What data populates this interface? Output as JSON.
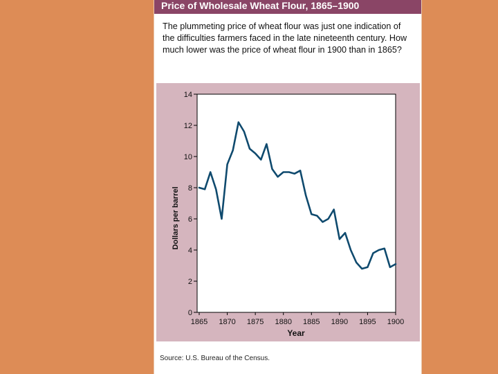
{
  "title": "Price of Wholesale Wheat Flour, 1865–1900",
  "intro": "The plummeting price of wheat flour was just one indication of the difficulties farmers faced in the late nineteenth century. How much lower was the price of wheat flour in 1900 than in 1865?",
  "source": "Source: U.S. Bureau of the Census.",
  "colors": {
    "line": "#0f4a6e",
    "title_bar": "#8a4566",
    "chart_bg": "#d5b5be",
    "background": "#dd8c56"
  },
  "chart_data": {
    "type": "line",
    "title": "Price of Wholesale Wheat Flour, 1865–1900",
    "xlabel": "Year",
    "ylabel": "Dollars per barrel",
    "xlim": [
      1865,
      1900
    ],
    "ylim": [
      0,
      14
    ],
    "x_ticks": [
      1865,
      1870,
      1875,
      1880,
      1885,
      1890,
      1895,
      1900
    ],
    "y_ticks": [
      0,
      2,
      4,
      6,
      8,
      10,
      12,
      14
    ],
    "grid": false,
    "series": [
      {
        "x": [
          1865,
          1866,
          1867,
          1868,
          1869,
          1870,
          1871,
          1872,
          1873,
          1874,
          1875,
          1876,
          1877,
          1878,
          1879,
          1880,
          1881,
          1882,
          1883,
          1884,
          1885,
          1886,
          1887,
          1888,
          1889,
          1890,
          1891,
          1892,
          1893,
          1894,
          1895,
          1896,
          1897,
          1898,
          1899,
          1900
        ],
        "values": [
          8.0,
          7.9,
          9.0,
          7.9,
          6.0,
          9.5,
          10.4,
          12.2,
          11.6,
          10.5,
          10.2,
          9.8,
          10.8,
          9.2,
          8.7,
          9.0,
          9.0,
          8.9,
          9.1,
          7.5,
          6.3,
          6.2,
          5.8,
          6.0,
          6.6,
          4.7,
          5.1,
          4.0,
          3.2,
          2.8,
          2.9,
          3.8,
          4.0,
          4.1,
          2.9,
          3.1
        ]
      }
    ]
  }
}
